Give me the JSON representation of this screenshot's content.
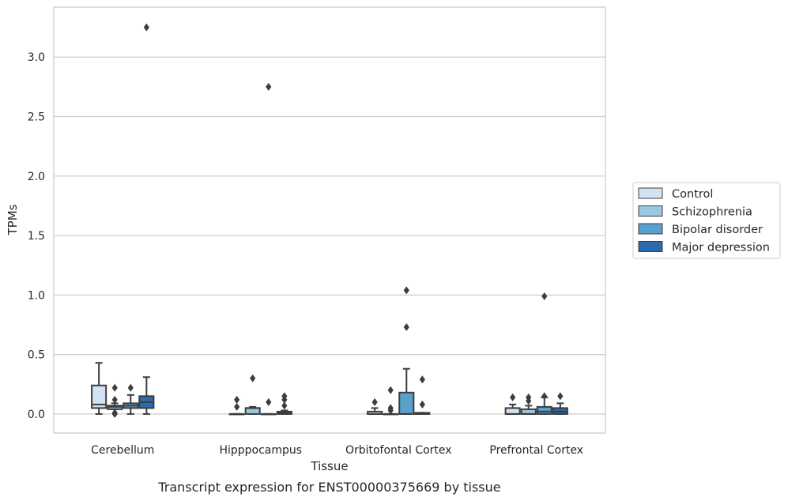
{
  "chart_data": {
    "type": "box",
    "xlabel": "Tissue",
    "ylabel": "TPMs",
    "caption": "Transcript expression for ENST00000375669 by tissue",
    "ylim": [
      -0.16,
      3.42
    ],
    "yticks": [
      0.0,
      0.5,
      1.0,
      1.5,
      2.0,
      2.5,
      3.0
    ],
    "ytick_labels": [
      "0.0",
      "0.5",
      "1.0",
      "1.5",
      "2.0",
      "2.5",
      "3.0"
    ],
    "grid": "horizontal",
    "legend_position": "outside-right",
    "categories": [
      "Cerebellum",
      "Hipppocampus",
      "Orbitofontal Cortex",
      "Prefrontal Cortex"
    ],
    "series": [
      {
        "name": "Control",
        "color": "#d1e2f2",
        "boxes": [
          {
            "q1": 0.05,
            "median": 0.08,
            "q3": 0.24,
            "whisker_low": 0.0,
            "whisker_high": 0.43,
            "outliers": []
          },
          {
            "q1": 0.0,
            "median": 0.0,
            "q3": 0.0,
            "whisker_low": 0.0,
            "whisker_high": 0.0,
            "outliers": [
              0.06,
              0.12
            ]
          },
          {
            "q1": 0.0,
            "median": 0.0,
            "q3": 0.02,
            "whisker_low": 0.0,
            "whisker_high": 0.05,
            "outliers": [
              0.1
            ]
          },
          {
            "q1": 0.0,
            "median": 0.0,
            "q3": 0.05,
            "whisker_low": 0.0,
            "whisker_high": 0.08,
            "outliers": [
              0.14
            ]
          }
        ]
      },
      {
        "name": "Schizophrenia",
        "color": "#9ac8e0",
        "boxes": [
          {
            "q1": 0.04,
            "median": 0.06,
            "q3": 0.07,
            "whisker_low": 0.04,
            "whisker_high": 0.09,
            "outliers": [
              0.0,
              0.01,
              0.12,
              0.22
            ]
          },
          {
            "q1": 0.0,
            "median": 0.05,
            "q3": 0.05,
            "whisker_low": 0.0,
            "whisker_high": 0.06,
            "outliers": [
              0.3
            ]
          },
          {
            "q1": 0.0,
            "median": 0.0,
            "q3": 0.0,
            "whisker_low": 0.0,
            "whisker_high": 0.0,
            "outliers": [
              0.03,
              0.05,
              0.2
            ]
          },
          {
            "q1": 0.0,
            "median": 0.0,
            "q3": 0.04,
            "whisker_low": 0.0,
            "whisker_high": 0.07,
            "outliers": [
              0.11,
              0.14
            ]
          }
        ]
      },
      {
        "name": "Bipolar disorder",
        "color": "#5aa0cd",
        "boxes": [
          {
            "q1": 0.05,
            "median": 0.07,
            "q3": 0.09,
            "whisker_low": 0.0,
            "whisker_high": 0.16,
            "outliers": [
              0.22
            ]
          },
          {
            "q1": 0.0,
            "median": 0.0,
            "q3": 0.0,
            "whisker_low": 0.0,
            "whisker_high": 0.0,
            "outliers": [
              0.1,
              2.75
            ]
          },
          {
            "q1": 0.0,
            "median": 0.0,
            "q3": 0.18,
            "whisker_low": 0.0,
            "whisker_high": 0.38,
            "outliers": [
              0.73,
              1.04
            ]
          },
          {
            "q1": 0.0,
            "median": 0.02,
            "q3": 0.06,
            "whisker_low": 0.0,
            "whisker_high": 0.14,
            "outliers": [
              0.15,
              0.99
            ]
          }
        ]
      },
      {
        "name": "Major depression",
        "color": "#2a6aae",
        "boxes": [
          {
            "q1": 0.05,
            "median": 0.1,
            "q3": 0.15,
            "whisker_low": 0.0,
            "whisker_high": 0.31,
            "outliers": [
              3.25
            ]
          },
          {
            "q1": 0.0,
            "median": 0.01,
            "q3": 0.02,
            "whisker_low": 0.0,
            "whisker_high": 0.03,
            "outliers": [
              0.07,
              0.12,
              0.15
            ]
          },
          {
            "q1": 0.0,
            "median": 0.0,
            "q3": 0.01,
            "whisker_low": 0.0,
            "whisker_high": 0.01,
            "outliers": [
              0.08,
              0.29
            ]
          },
          {
            "q1": 0.0,
            "median": 0.02,
            "q3": 0.05,
            "whisker_low": 0.0,
            "whisker_high": 0.09,
            "outliers": [
              0.15
            ]
          }
        ]
      }
    ]
  }
}
